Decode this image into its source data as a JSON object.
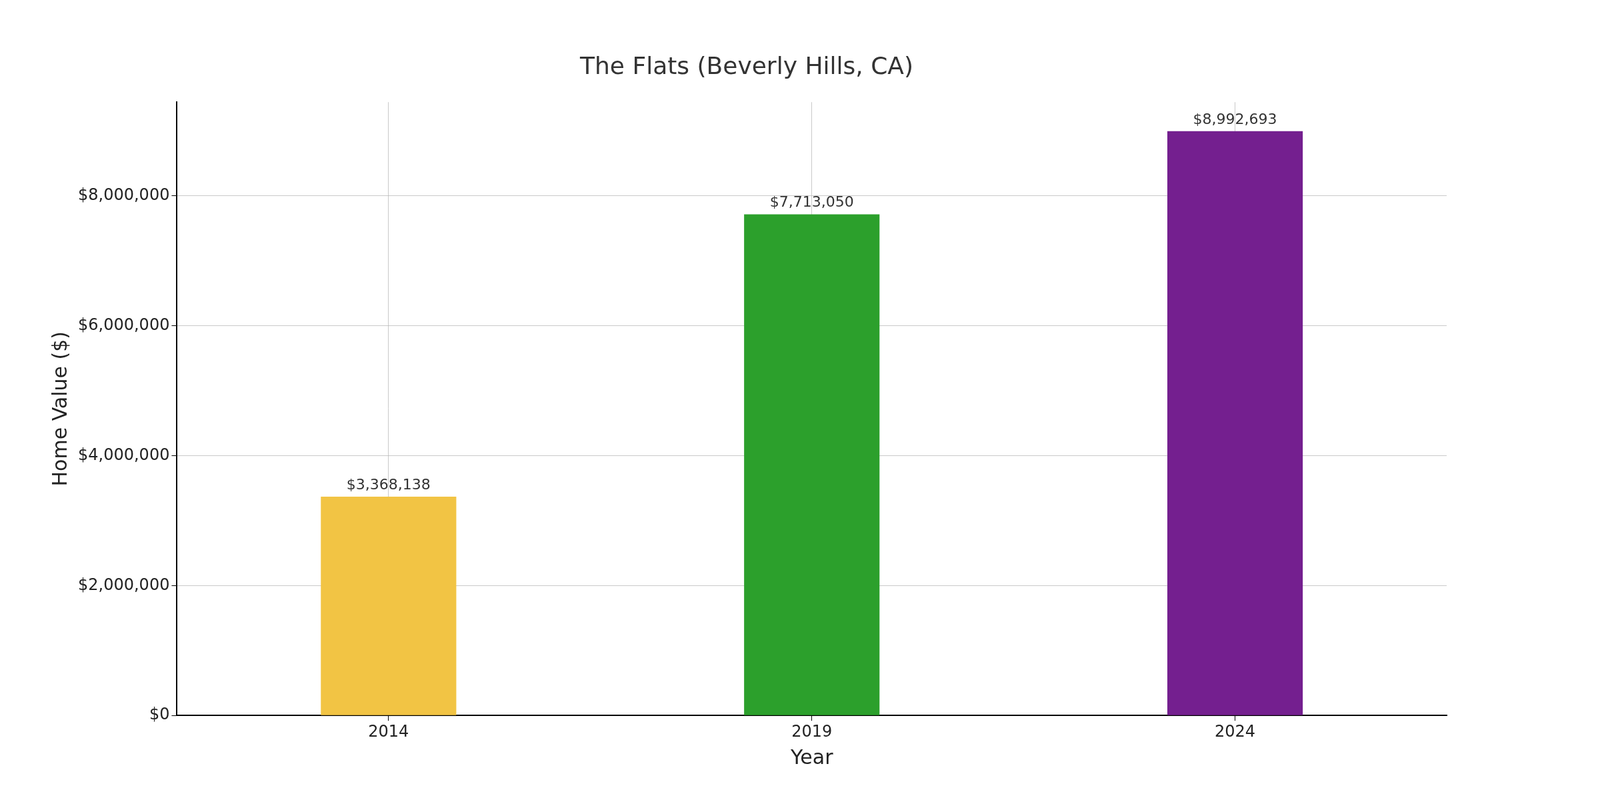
{
  "chart_data": {
    "type": "bar",
    "title": "The Flats (Beverly Hills, CA)",
    "x_label": "Year",
    "y_label": "Home Value ($)",
    "categories": [
      "2014",
      "2019",
      "2024"
    ],
    "values": [
      3368138,
      7713050,
      8992693
    ],
    "value_labels": [
      "$3,368,138",
      "$7,713,050",
      "$8,992,693"
    ],
    "colors": [
      "#f2c444",
      "#2ca02c",
      "#741f8f"
    ],
    "ylim": [
      0,
      9440000
    ],
    "yticks": [
      {
        "value": 0,
        "label": "$0"
      },
      {
        "value": 2000000,
        "label": "$2,000,000"
      },
      {
        "value": 4000000,
        "label": "$4,000,000"
      },
      {
        "value": 6000000,
        "label": "$6,000,000"
      },
      {
        "value": 8000000,
        "label": "$8,000,000"
      }
    ],
    "grid": true,
    "data_labels": true
  }
}
